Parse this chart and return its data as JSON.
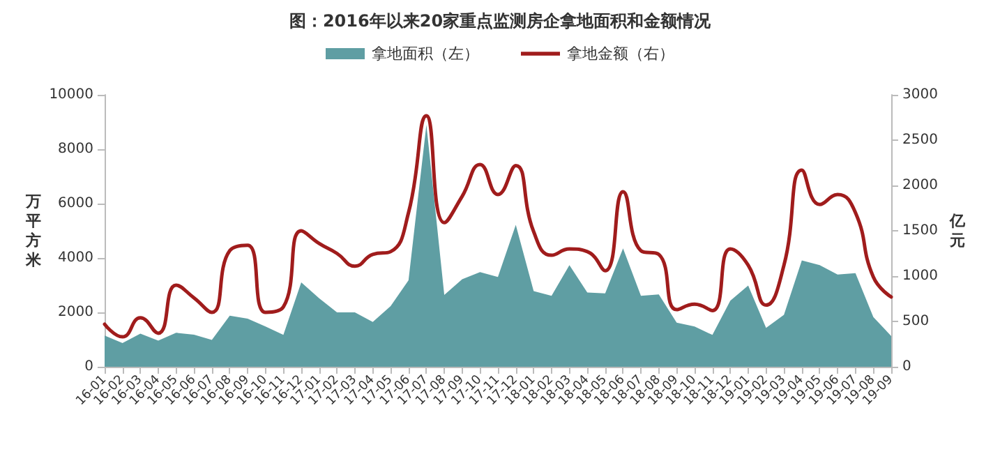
{
  "chart_data": {
    "type": "area",
    "title": "图：2016年以来20家重点监测房企拿地面积和金额情况",
    "ylabel": "万平方米",
    "y2label": "亿元",
    "categories": [
      "16-01",
      "16-02",
      "16-03",
      "16-04",
      "16-05",
      "16-06",
      "16-07",
      "16-08",
      "16-09",
      "16-10",
      "16-11",
      "16-12",
      "17-01",
      "17-02",
      "17-03",
      "17-04",
      "17-05",
      "17-06",
      "17-07",
      "17-08",
      "17-09",
      "17-10",
      "17-11",
      "17-12",
      "18-01",
      "18-02",
      "18-03",
      "18-04",
      "18-05",
      "18-06",
      "18-07",
      "18-08",
      "18-09",
      "18-10",
      "18-11",
      "18-12",
      "19-01",
      "19-02",
      "19-03",
      "19-04",
      "19-05",
      "19-06",
      "19-07",
      "19-08",
      "19-09"
    ],
    "series": [
      {
        "name": "拿地面积（左）",
        "color": "#5f9ea3",
        "values": [
          1150,
          870,
          1220,
          960,
          1250,
          1180,
          990,
          1880,
          1770,
          1480,
          1170,
          3100,
          2520,
          2000,
          2000,
          1650,
          2230,
          3180,
          8900,
          2640,
          3220,
          3480,
          3300,
          5220,
          2780,
          2610,
          3740,
          2730,
          2700,
          4350,
          2610,
          2660,
          1620,
          1480,
          1170,
          2430,
          2990,
          1430,
          1910,
          3910,
          3740,
          3390,
          3440,
          1830,
          1130
        ]
      },
      {
        "name": "拿地金额（右）",
        "type": "line",
        "axis": "y2",
        "color": "#a01c1c",
        "values": [
          470,
          330,
          540,
          370,
          900,
          760,
          600,
          1280,
          1340,
          600,
          660,
          1500,
          1360,
          1250,
          1110,
          1240,
          1270,
          1700,
          2770,
          1590,
          1880,
          2230,
          1900,
          2220,
          1490,
          1230,
          1300,
          1270,
          1060,
          1930,
          1280,
          1240,
          630,
          690,
          620,
          1300,
          1120,
          680,
          1120,
          2170,
          1790,
          1900,
          1700,
          990,
          770
        ]
      }
    ],
    "ylim": [
      0,
      10000
    ],
    "yticks": [
      0,
      2000,
      4000,
      6000,
      8000,
      10000
    ],
    "y2lim": [
      0,
      3000
    ],
    "y2ticks": [
      0,
      500,
      1000,
      1500,
      2000,
      2500,
      3000
    ],
    "legend": "top",
    "grid": false,
    "marker": "none",
    "line_style": "solid"
  }
}
